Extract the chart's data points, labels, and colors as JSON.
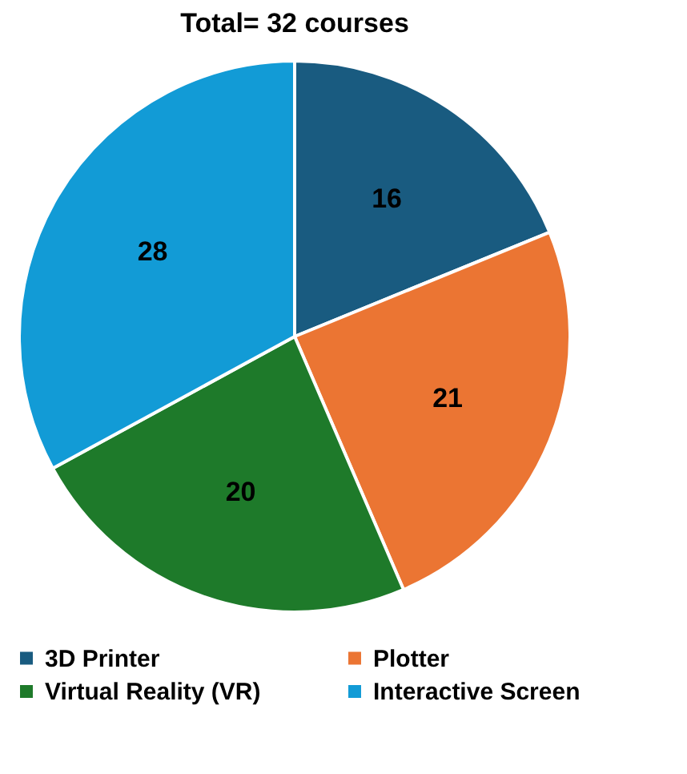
{
  "chart_data": {
    "type": "pie",
    "title": "Total= 32 courses",
    "categories": [
      "3D Printer",
      "Plotter",
      "Virtual Reality (VR)",
      "Interactive Screen"
    ],
    "values": [
      16,
      21,
      20,
      28
    ],
    "colors": [
      "#195b80",
      "#eb7533",
      "#1e7a2a",
      "#129bd6"
    ],
    "data_labels": true,
    "legend": "bottom"
  }
}
